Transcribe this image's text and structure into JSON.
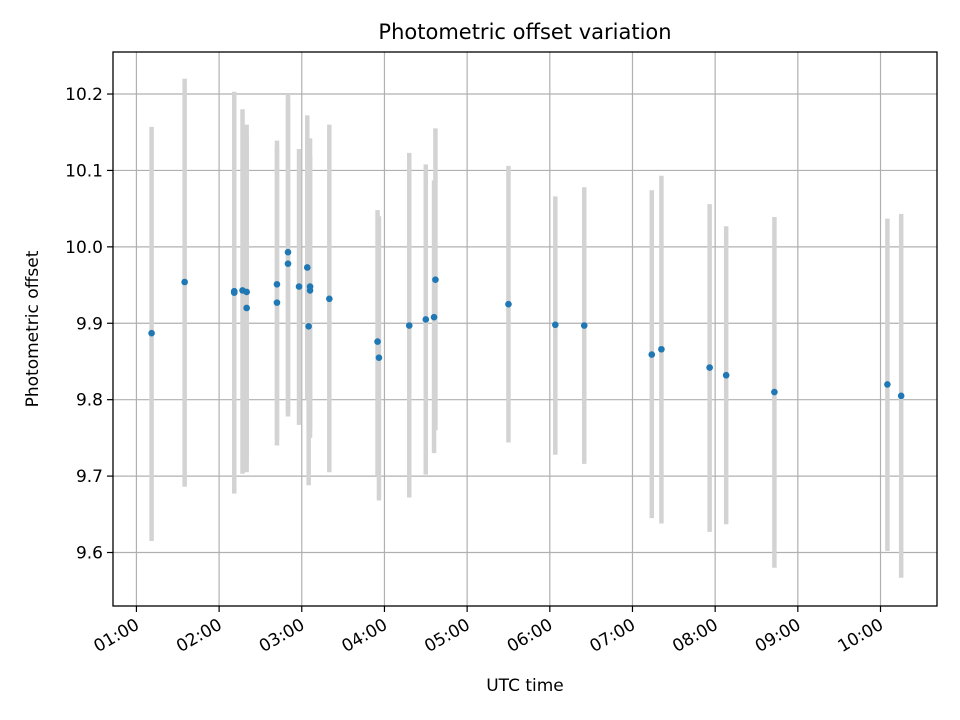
{
  "chart_data": {
    "type": "scatter",
    "title": "Photometric offset variation",
    "xlabel": "UTC time",
    "ylabel": "Photometric offset",
    "xlim": [
      "00:43",
      "10:41"
    ],
    "ylim": [
      9.53,
      10.255
    ],
    "x_ticks": [
      "01:00",
      "02:00",
      "03:00",
      "04:00",
      "05:00",
      "06:00",
      "07:00",
      "08:00",
      "09:00",
      "10:00"
    ],
    "y_ticks": [
      "9.6",
      "9.7",
      "9.8",
      "9.9",
      "10.0",
      "10.1",
      "10.2"
    ],
    "grid": true,
    "errorbar_color": "#d3d3d3",
    "point_color": "#1f77b4",
    "points": [
      {
        "x": "01:11",
        "y": 9.887,
        "low": 9.615,
        "high": 10.157
      },
      {
        "x": "01:35",
        "y": 9.954,
        "low": 9.686,
        "high": 10.22
      },
      {
        "x": "02:11",
        "y": 9.942,
        "low": 9.677,
        "high": 10.203
      },
      {
        "x": "02:11",
        "y": 9.94,
        "low": 9.68,
        "high": 10.2
      },
      {
        "x": "02:17",
        "y": 9.943,
        "low": 9.703,
        "high": 10.18
      },
      {
        "x": "02:20",
        "y": 9.941,
        "low": 9.722,
        "high": 10.16
      },
      {
        "x": "02:20",
        "y": 9.92,
        "low": 9.705,
        "high": 10.14
      },
      {
        "x": "02:42",
        "y": 9.951,
        "low": 9.747,
        "high": 10.139
      },
      {
        "x": "02:42",
        "y": 9.927,
        "low": 9.74,
        "high": 10.13
      },
      {
        "x": "02:50",
        "y": 9.993,
        "low": 9.782,
        "high": 10.2
      },
      {
        "x": "02:50",
        "y": 9.978,
        "low": 9.778,
        "high": 10.19
      },
      {
        "x": "02:58",
        "y": 9.948,
        "low": 9.767,
        "high": 10.128
      },
      {
        "x": "03:04",
        "y": 9.973,
        "low": 9.8,
        "high": 10.172
      },
      {
        "x": "03:05",
        "y": 9.896,
        "low": 9.688,
        "high": 10.142
      },
      {
        "x": "03:06",
        "y": 9.948,
        "low": 9.75,
        "high": 10.142
      },
      {
        "x": "03:06",
        "y": 9.943,
        "low": 9.76,
        "high": 10.12
      },
      {
        "x": "03:20",
        "y": 9.932,
        "low": 9.705,
        "high": 10.16
      },
      {
        "x": "03:55",
        "y": 9.876,
        "low": 9.7,
        "high": 10.048
      },
      {
        "x": "03:56",
        "y": 9.855,
        "low": 9.668,
        "high": 10.04
      },
      {
        "x": "04:18",
        "y": 9.897,
        "low": 9.672,
        "high": 10.123
      },
      {
        "x": "04:30",
        "y": 9.905,
        "low": 9.702,
        "high": 10.108
      },
      {
        "x": "04:36",
        "y": 9.908,
        "low": 9.73,
        "high": 10.087
      },
      {
        "x": "04:37",
        "y": 9.957,
        "low": 9.76,
        "high": 10.155
      },
      {
        "x": "05:30",
        "y": 9.925,
        "low": 9.744,
        "high": 10.106
      },
      {
        "x": "06:04",
        "y": 9.898,
        "low": 9.728,
        "high": 10.066
      },
      {
        "x": "06:25",
        "y": 9.897,
        "low": 9.716,
        "high": 10.078
      },
      {
        "x": "07:14",
        "y": 9.859,
        "low": 9.645,
        "high": 10.074
      },
      {
        "x": "07:21",
        "y": 9.866,
        "low": 9.638,
        "high": 10.093
      },
      {
        "x": "07:56",
        "y": 9.842,
        "low": 9.627,
        "high": 10.056
      },
      {
        "x": "08:08",
        "y": 9.832,
        "low": 9.637,
        "high": 10.027
      },
      {
        "x": "08:43",
        "y": 9.81,
        "low": 9.58,
        "high": 10.039
      },
      {
        "x": "10:05",
        "y": 9.82,
        "low": 9.602,
        "high": 10.037
      },
      {
        "x": "10:15",
        "y": 9.805,
        "low": 9.567,
        "high": 10.043
      }
    ]
  }
}
